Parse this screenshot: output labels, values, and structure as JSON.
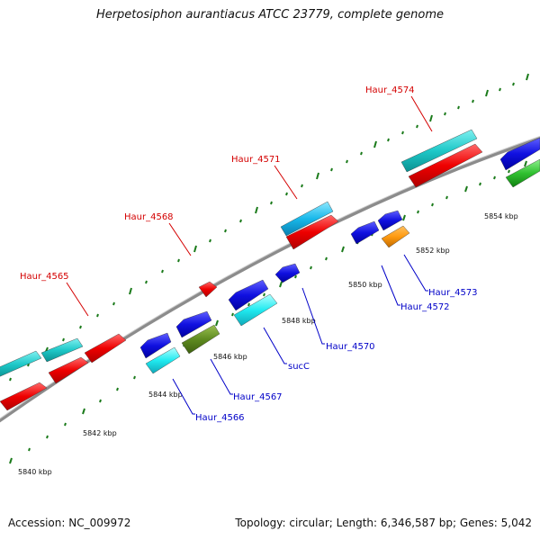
{
  "title": "Herpetosiphon aurantiacus ATCC 23779, complete genome",
  "footer": {
    "accession": "Accession: NC_009972",
    "summary": "Topology: circular; Length: 6,346,587 bp; Genes: 5,042"
  },
  "colors": {
    "backbone": "#8c8c8c",
    "ticks": "#1a7a1a",
    "label_forward": "#d40000",
    "label_reverse": "#0000c8"
  },
  "scale": {
    "unit": "kbp",
    "labels": [
      "5840 kbp",
      "5842 kbp",
      "5844 kbp",
      "5846 kbp",
      "5848 kbp",
      "5850 kbp",
      "5852 kbp",
      "5854 kbp"
    ]
  },
  "gene_labels": {
    "forward": [
      "Haur_4565",
      "Haur_4568",
      "Haur_4571",
      "Haur_4574"
    ],
    "reverse": [
      "Haur_4566",
      "Haur_4567",
      "sucC",
      "Haur_4570",
      "Haur_4572",
      "Haur_4573"
    ]
  }
}
